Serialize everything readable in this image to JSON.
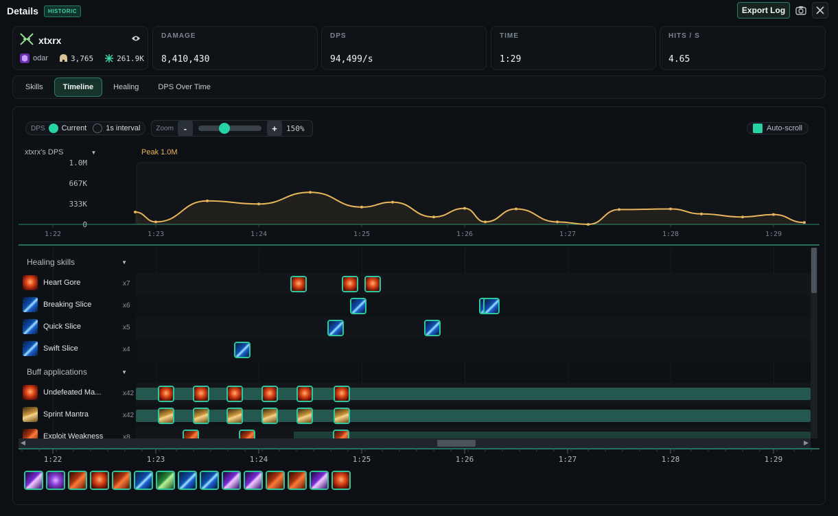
{
  "window": {
    "title": "Details",
    "badge": "HISTORIC",
    "export_label": "Export Log"
  },
  "player": {
    "name": "xtxrx",
    "guild": "odar",
    "stat1": "3,765",
    "stat2": "261.9K"
  },
  "stats": [
    {
      "label": "DAMAGE",
      "value": "8,410,430"
    },
    {
      "label": "DPS",
      "value": "94,499/s"
    },
    {
      "label": "TIME",
      "value": "1:29"
    },
    {
      "label": "HITS / S",
      "value": "4.65"
    }
  ],
  "tabs": [
    {
      "label": "Skills",
      "active": false
    },
    {
      "label": "Timeline",
      "active": true
    },
    {
      "label": "Healing",
      "active": false
    },
    {
      "label": "DPS Over Time",
      "active": false
    }
  ],
  "controls": {
    "dps_label": "DPS",
    "opt_current": "Current",
    "opt_interval": "1s interval",
    "zoom_label": "Zoom",
    "zoom_minus": "-",
    "zoom_plus": "+",
    "zoom_value": "150%",
    "zoom_level": 0.4,
    "autoscroll": "Auto-scroll"
  },
  "chart_data": {
    "type": "line",
    "title": "xtxrx's DPS",
    "annotation": "Peak 1.0M",
    "y_ticks": [
      "1.0M",
      "667K",
      "333K",
      "0"
    ],
    "ylim": [
      0,
      1000000
    ],
    "x_ticks": [
      "1:22",
      "1:23",
      "1:24",
      "1:25",
      "1:26",
      "1:27",
      "1:28",
      "1:29"
    ],
    "xlim": [
      "1:22",
      "1:29.3"
    ],
    "x": [
      "1:22.8",
      "1:23.0",
      "1:23.5",
      "1:24.0",
      "1:24.5",
      "1:25.0",
      "1:25.3",
      "1:25.7",
      "1:26.0",
      "1:26.2",
      "1:26.5",
      "1:26.9",
      "1:27.2",
      "1:27.5",
      "1:28.0",
      "1:28.3",
      "1:28.7",
      "1:29.0",
      "1:29.3"
    ],
    "series": [
      {
        "values": [
          200000,
          40000,
          380000,
          330000,
          520000,
          280000,
          360000,
          120000,
          260000,
          40000,
          250000,
          40000,
          0,
          240000,
          250000,
          170000,
          120000,
          160000,
          30000
        ]
      }
    ],
    "color": "#e9b65b"
  },
  "timeline": {
    "ticks": [
      "1:22",
      "1:23",
      "1:24",
      "1:25",
      "1:26",
      "1:27",
      "1:28",
      "1:29"
    ],
    "sections": [
      {
        "title": "Healing skills",
        "rows": [
          {
            "name": "Heart Gore",
            "count": "x7",
            "icon": "i-red",
            "events": [
              1.58,
              2.08,
              2.3
            ]
          },
          {
            "name": "Breaking Slice",
            "count": "x6",
            "icon": "i-blue",
            "events": [
              2.16,
              3.41,
              3.45
            ]
          },
          {
            "name": "Quick Slice",
            "count": "x5",
            "icon": "i-blue",
            "events": [
              1.94,
              2.88
            ]
          },
          {
            "name": "Swift Slice",
            "count": "x4",
            "icon": "i-blue",
            "events": [
              1.03
            ]
          }
        ]
      },
      {
        "title": "Buff applications",
        "rows": [
          {
            "name": "Undefeated Ma...",
            "count": "x42",
            "icon": "i-red",
            "events": [
              0.29,
              0.63,
              0.96,
              1.3,
              1.64,
              2.0
            ]
          },
          {
            "name": "Sprint Mantra",
            "count": "x42",
            "icon": "i-gold",
            "events": [
              0.29,
              0.63,
              0.96,
              1.3,
              1.64,
              2.0
            ]
          },
          {
            "name": "Exploit Weakness",
            "count": "x8",
            "icon": "i-orange",
            "events": [
              0.53,
              1.08,
              1.99
            ]
          }
        ]
      }
    ]
  },
  "bottom_icons": [
    "i-violet",
    "i-purple",
    "i-orange",
    "i-red",
    "i-orange",
    "i-blue",
    "i-green",
    "i-blue",
    "i-blue",
    "i-violet",
    "i-violet",
    "i-orange",
    "i-orange",
    "i-violet",
    "i-red"
  ]
}
